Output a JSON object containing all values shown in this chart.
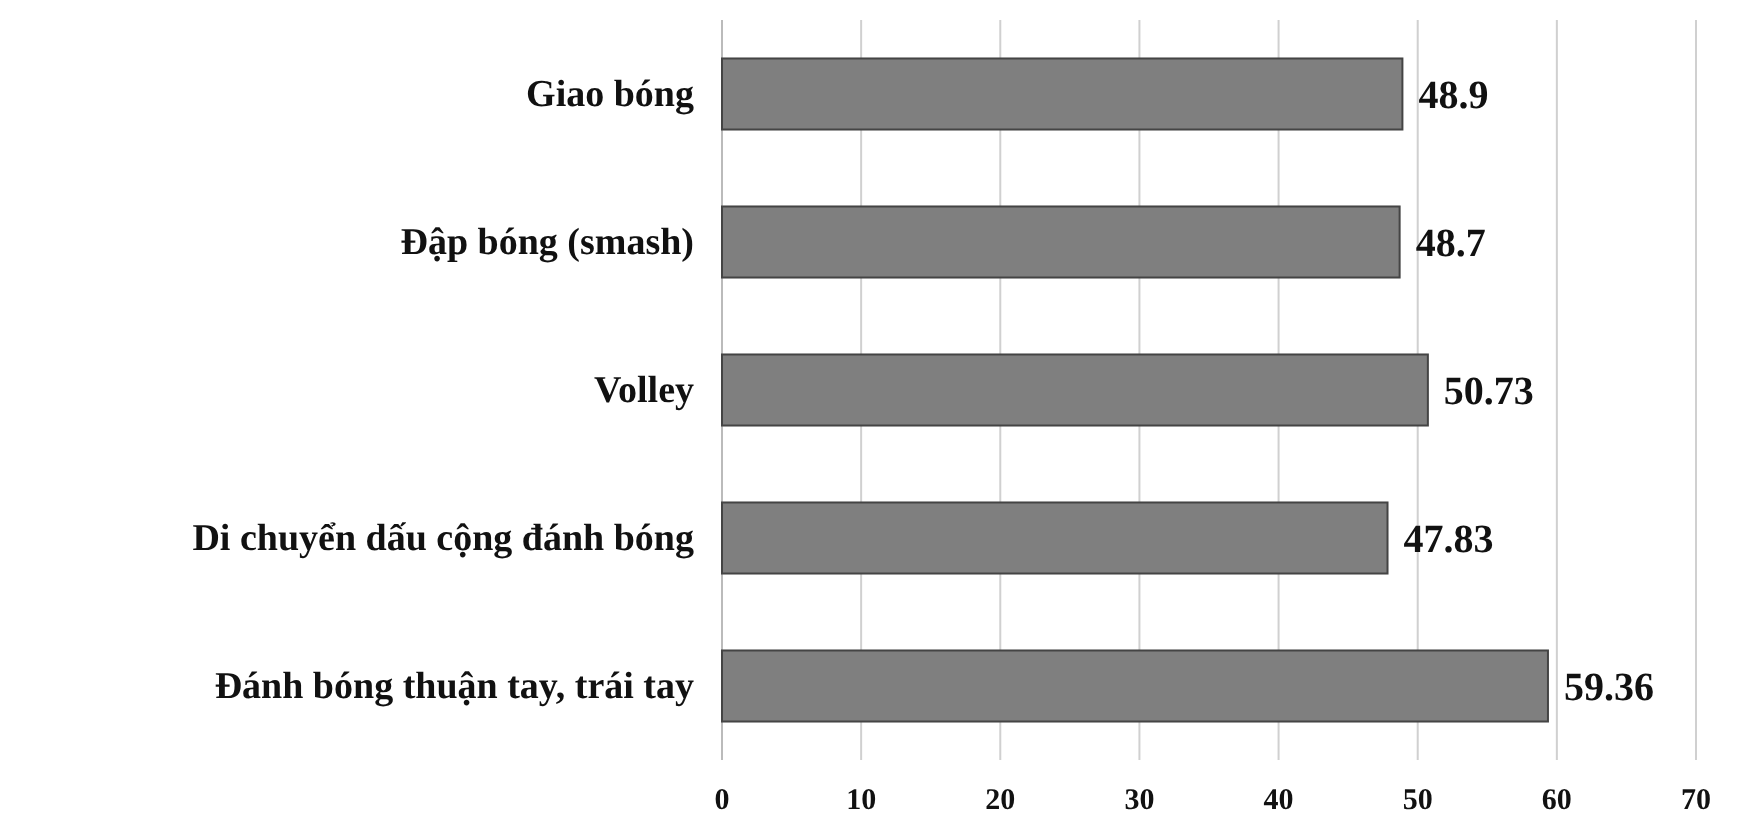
{
  "chart_data": {
    "type": "bar",
    "orientation": "horizontal",
    "categories": [
      "Giao bóng",
      "Đập bóng (smash)",
      "Volley",
      "Di chuyển dấu cộng đánh bóng",
      "Đánh bóng thuận tay, trái tay"
    ],
    "values": [
      48.9,
      48.7,
      50.73,
      47.83,
      59.36
    ],
    "color": "#7f7f7f",
    "xlim": [
      0,
      70
    ],
    "xticks": [
      0,
      10,
      20,
      30,
      40,
      50,
      60,
      70
    ],
    "grid": "x",
    "data_labels": true
  }
}
